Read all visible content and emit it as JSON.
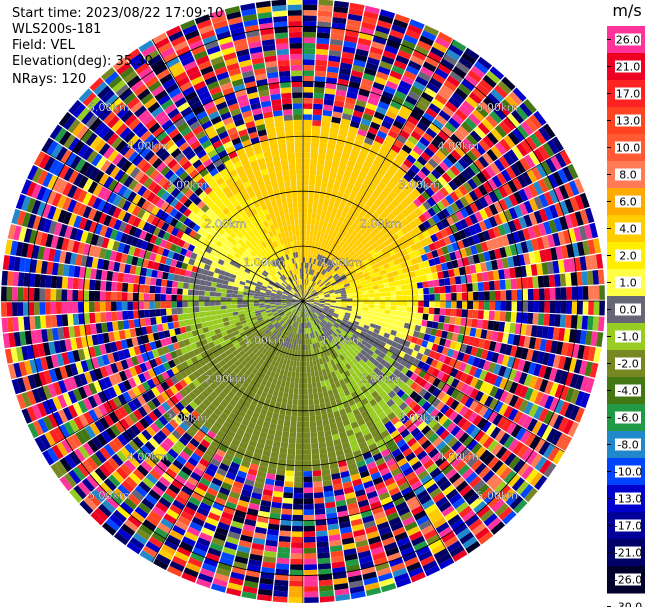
{
  "header": {
    "start_time": "Start time: 2023/08/22 17:09:10",
    "instrument": "WLS200s-181",
    "field": "Field: VEL",
    "elevation": "Elevation(deg): 35.30",
    "nrays": "NRays: 120"
  },
  "colorbar": {
    "unit": "m/s",
    "ticks": [
      "26.0",
      "21.0",
      "17.0",
      "13.0",
      "10.0",
      "8.0",
      "6.0",
      "4.0",
      "2.0",
      "1.0",
      "0.0",
      "-1.0",
      "-2.0",
      "-4.0",
      "-6.0",
      "-8.0",
      "-10.0",
      "-13.0",
      "-17.0",
      "-21.0",
      "-26.0",
      "-30.0"
    ]
  },
  "chart_data": {
    "type": "ppi",
    "field": "VEL",
    "units": "m/s",
    "n_rays": 120,
    "elevation_deg": 35.3,
    "range_rings_km": [
      1.0,
      2.0,
      3.0,
      4.0,
      5.0
    ],
    "ring_labels": [
      "1.00km",
      "2.00km",
      "3.00km",
      "4.00km",
      "5.00km"
    ],
    "max_range_km": 5.5,
    "color_levels": [
      {
        "from": 21.0,
        "to": 26.0,
        "color": "#ff3399"
      },
      {
        "from": 17.0,
        "to": 21.0,
        "color": "#ee0022"
      },
      {
        "from": 13.0,
        "to": 17.0,
        "color": "#ff2222"
      },
      {
        "from": 10.0,
        "to": 13.0,
        "color": "#ff4422"
      },
      {
        "from": 8.0,
        "to": 10.0,
        "color": "#ff5a33"
      },
      {
        "from": 6.0,
        "to": 8.0,
        "color": "#ff7a55"
      },
      {
        "from": 4.0,
        "to": 6.0,
        "color": "#ffaa00"
      },
      {
        "from": 2.0,
        "to": 4.0,
        "color": "#ffcc00"
      },
      {
        "from": 1.0,
        "to": 2.0,
        "color": "#ffee00"
      },
      {
        "from": 0.0,
        "to": 1.0,
        "color": "#ffff44"
      },
      {
        "from": -1.0,
        "to": 0.0,
        "color": "#666677"
      },
      {
        "from": -2.0,
        "to": -1.0,
        "color": "#99cc22"
      },
      {
        "from": -4.0,
        "to": -2.0,
        "color": "#778822"
      },
      {
        "from": -6.0,
        "to": -4.0,
        "color": "#447711"
      },
      {
        "from": -8.0,
        "to": -6.0,
        "color": "#229944"
      },
      {
        "from": -10.0,
        "to": -8.0,
        "color": "#2288cc"
      },
      {
        "from": -13.0,
        "to": -10.0,
        "color": "#0044ff"
      },
      {
        "from": -17.0,
        "to": -13.0,
        "color": "#0000cc"
      },
      {
        "from": -21.0,
        "to": -17.0,
        "color": "#000099"
      },
      {
        "from": -26.0,
        "to": -21.0,
        "color": "#000066"
      },
      {
        "from": -30.0,
        "to": -26.0,
        "color": "#00002a"
      }
    ],
    "wind_field": {
      "toward_direction_deg": 20,
      "max_speed_ms": 3.0,
      "noise_start_km": [
        2.2,
        3.3
      ]
    }
  }
}
